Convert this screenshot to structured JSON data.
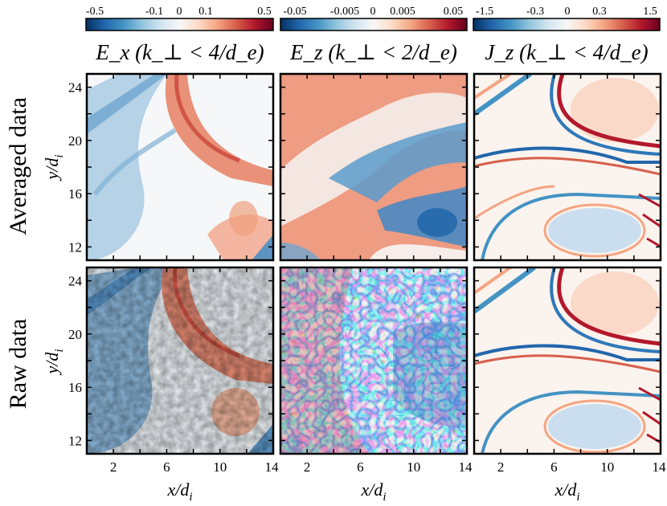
{
  "figure": {
    "row_labels": [
      "Averaged data",
      "Raw data"
    ],
    "xlabel": "x/d",
    "xlabel_sub": "i",
    "ylabel": "y/d",
    "ylabel_sub": "i"
  },
  "chart_data": [
    {
      "type": "heatmap",
      "panel": "Ex averaged",
      "title": "E_x (k_⊥ < 4/d_e)",
      "row": "Averaged data",
      "colorbar": {
        "ticks": [
          "-0.5",
          "-0.1",
          "0",
          "0.1",
          "0.5"
        ],
        "range": [
          -0.5,
          0.5
        ]
      },
      "xlim": [
        0,
        14
      ],
      "ylim": [
        11,
        25
      ],
      "xticks": [],
      "yticks": [
        "12",
        "16",
        "20",
        "24"
      ]
    },
    {
      "type": "heatmap",
      "panel": "Ez averaged",
      "title": "E_z (k_⊥ < 2/d_e)",
      "row": "Averaged data",
      "colorbar": {
        "ticks": [
          "-0.05",
          "-0.005",
          "0",
          "0.005",
          "0.05"
        ],
        "range": [
          -0.05,
          0.05
        ]
      },
      "xlim": [
        0,
        14
      ],
      "ylim": [
        11,
        25
      ],
      "xticks": [],
      "yticks": []
    },
    {
      "type": "heatmap",
      "panel": "Jz averaged",
      "title": "J_z (k_⊥ < 4/d_e)",
      "row": "Averaged data",
      "colorbar": {
        "ticks": [
          "-1.5",
          "-0.3",
          "0",
          "0.3",
          "1.5"
        ],
        "range": [
          -1.5,
          1.5
        ]
      },
      "xlim": [
        0,
        14
      ],
      "ylim": [
        11,
        25
      ],
      "xticks": [],
      "yticks": []
    },
    {
      "type": "heatmap",
      "panel": "Ex raw",
      "row": "Raw data",
      "xlim": [
        0,
        14
      ],
      "ylim": [
        11,
        25
      ],
      "xticks": [
        "2",
        "6",
        "10",
        "14"
      ],
      "yticks": [
        "12",
        "16",
        "20",
        "24"
      ]
    },
    {
      "type": "heatmap",
      "panel": "Ez raw",
      "row": "Raw data",
      "xlim": [
        0,
        14
      ],
      "ylim": [
        11,
        25
      ],
      "xticks": [
        "2",
        "6",
        "10",
        "14"
      ],
      "yticks": []
    },
    {
      "type": "heatmap",
      "panel": "Jz raw",
      "row": "Raw data",
      "xlim": [
        0,
        14
      ],
      "ylim": [
        11,
        25
      ],
      "xticks": [
        "2",
        "6",
        "10",
        "14"
      ],
      "yticks": []
    }
  ],
  "colors": {
    "cmap": [
      "#053061",
      "#2166ac",
      "#4393c3",
      "#92c5de",
      "#d1e5f0",
      "#f7f7f7",
      "#fddbc7",
      "#f4a582",
      "#d6604d",
      "#b2182b",
      "#67001f"
    ]
  }
}
